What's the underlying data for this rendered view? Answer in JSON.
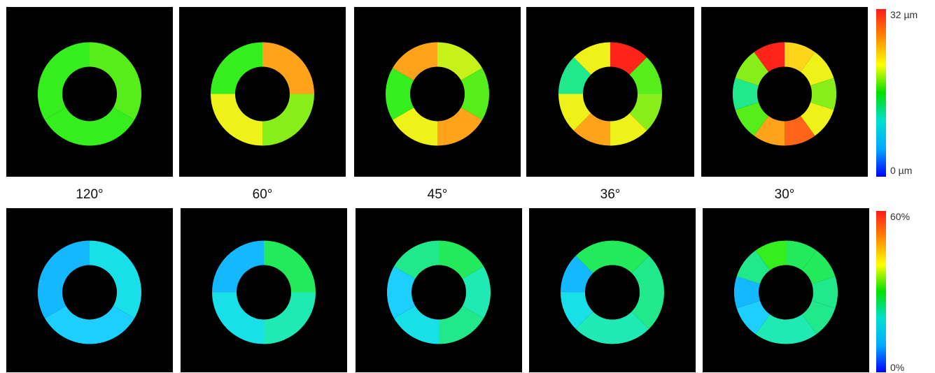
{
  "palette": {
    "0": "#1a9fff",
    "1": "#14b8ff",
    "2": "#1ccfff",
    "3": "#19e0e8",
    "4": "#20eab4",
    "5": "#22e88c",
    "6": "#22ea5a",
    "7": "#34ef1d",
    "8": "#55ee1a",
    "9": "#88ee1a",
    "10": "#c6f21a",
    "11": "#eef218",
    "12": "#ffd41a",
    "13": "#ffa41a",
    "14": "#ff6418",
    "15": "#ff2418"
  },
  "angle_labels": [
    "120°",
    "60°",
    "45°",
    "36°",
    "30°"
  ],
  "top_row": {
    "colorbar": {
      "max_label": "32 µm",
      "min_label": "0 µm",
      "stops": [
        "#ff1a1a",
        "#ff8a00",
        "#ffff00",
        "#00e000",
        "#00e0d0",
        "#00aaff",
        "#0000ff"
      ]
    },
    "rings": [
      [
        "8",
        "7",
        "7"
      ],
      [
        "13",
        "9",
        "11",
        "7"
      ],
      [
        "10",
        "8",
        "13",
        "11",
        "7",
        "13"
      ],
      [
        "15",
        "8",
        "9",
        "11",
        "13",
        "11",
        "5",
        "11"
      ],
      [
        "12",
        "11",
        "9",
        "11",
        "14",
        "13",
        "8",
        "5",
        "9",
        "15"
      ]
    ]
  },
  "bottom_row": {
    "colorbar": {
      "max_label": "60%",
      "min_label": "0%",
      "stops": [
        "#ff1a1a",
        "#ff8a00",
        "#ffff00",
        "#00e000",
        "#00e0d0",
        "#00aaff",
        "#0000ff"
      ]
    },
    "rings": [
      [
        "3",
        "2",
        "1"
      ],
      [
        "6",
        "4",
        "3",
        "1"
      ],
      [
        "6",
        "4",
        "5",
        "3",
        "2",
        "5"
      ],
      [
        "6",
        "5",
        "5",
        "4",
        "4",
        "3",
        "1",
        "6"
      ],
      [
        "6",
        "6",
        "5",
        "5",
        "4",
        "4",
        "2",
        "1",
        "5",
        "7"
      ]
    ]
  }
}
